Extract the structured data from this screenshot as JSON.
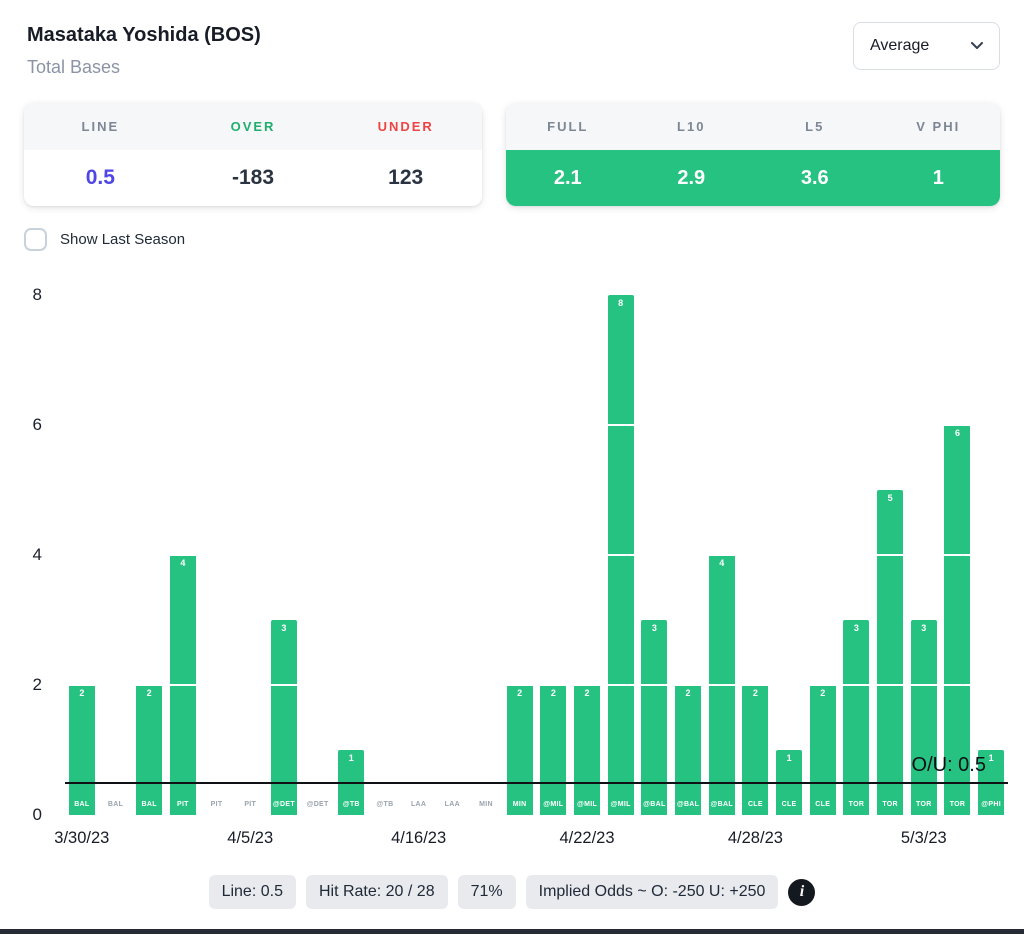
{
  "header": {
    "player_name": "Masataka Yoshida (BOS)",
    "stat_label": "Total Bases",
    "view_dropdown": {
      "selected": "Average"
    }
  },
  "odds_card": {
    "columns": [
      {
        "label": "LINE",
        "value": "0.5"
      },
      {
        "label": "OVER",
        "value": "-183"
      },
      {
        "label": "UNDER",
        "value": "123"
      }
    ]
  },
  "splits_card": {
    "columns": [
      {
        "label": "FULL",
        "value": "2.1"
      },
      {
        "label": "L10",
        "value": "2.9"
      },
      {
        "label": "L5",
        "value": "3.6"
      },
      {
        "label": "V PHI",
        "value": "1"
      }
    ]
  },
  "toggle": {
    "label": "Show Last Season",
    "checked": false
  },
  "chart_data": {
    "type": "bar",
    "title": "",
    "xlabel": "",
    "ylabel": "",
    "ylim": [
      0,
      8
    ],
    "yticks": [
      0,
      2,
      4,
      6,
      8
    ],
    "grid_values": [
      2,
      4,
      6
    ],
    "threshold": 0.5,
    "threshold_label": "O/U: 0.5",
    "categories": [
      "BAL",
      "BAL",
      "BAL",
      "PIT",
      "PIT",
      "PIT",
      "@DET",
      "@DET",
      "@TB",
      "@TB",
      "LAA",
      "LAA",
      "MIN",
      "MIN",
      "@MIL",
      "@MIL",
      "@MIL",
      "@BAL",
      "@BAL",
      "@BAL",
      "CLE",
      "CLE",
      "CLE",
      "TOR",
      "TOR",
      "TOR",
      "TOR",
      "@PHI"
    ],
    "values": [
      2,
      0,
      2,
      4,
      0,
      0,
      3,
      0,
      1,
      0,
      0,
      0,
      0,
      2,
      2,
      2,
      8,
      3,
      2,
      4,
      2,
      1,
      2,
      3,
      5,
      3,
      6,
      1
    ],
    "date_ticks": [
      {
        "index": 0,
        "label": "3/30/23"
      },
      {
        "index": 5,
        "label": "4/5/23"
      },
      {
        "index": 10,
        "label": "4/16/23"
      },
      {
        "index": 15,
        "label": "4/22/23"
      },
      {
        "index": 20,
        "label": "4/28/23"
      },
      {
        "index": 25,
        "label": "5/3/23"
      }
    ],
    "legend_position": "none"
  },
  "footer": {
    "badges": [
      "Line: 0.5",
      "Hit Rate: 20 / 28",
      "71%",
      "Implied Odds ~ O: -250 U: +250"
    ]
  },
  "icons": {
    "info": "i"
  },
  "colors": {
    "bar_green": "#26C281",
    "line_value_blue": "#4F46E5",
    "over_green": "#1FAE6E",
    "under_red": "#EF4444",
    "threshold_line": "#0F1115"
  }
}
